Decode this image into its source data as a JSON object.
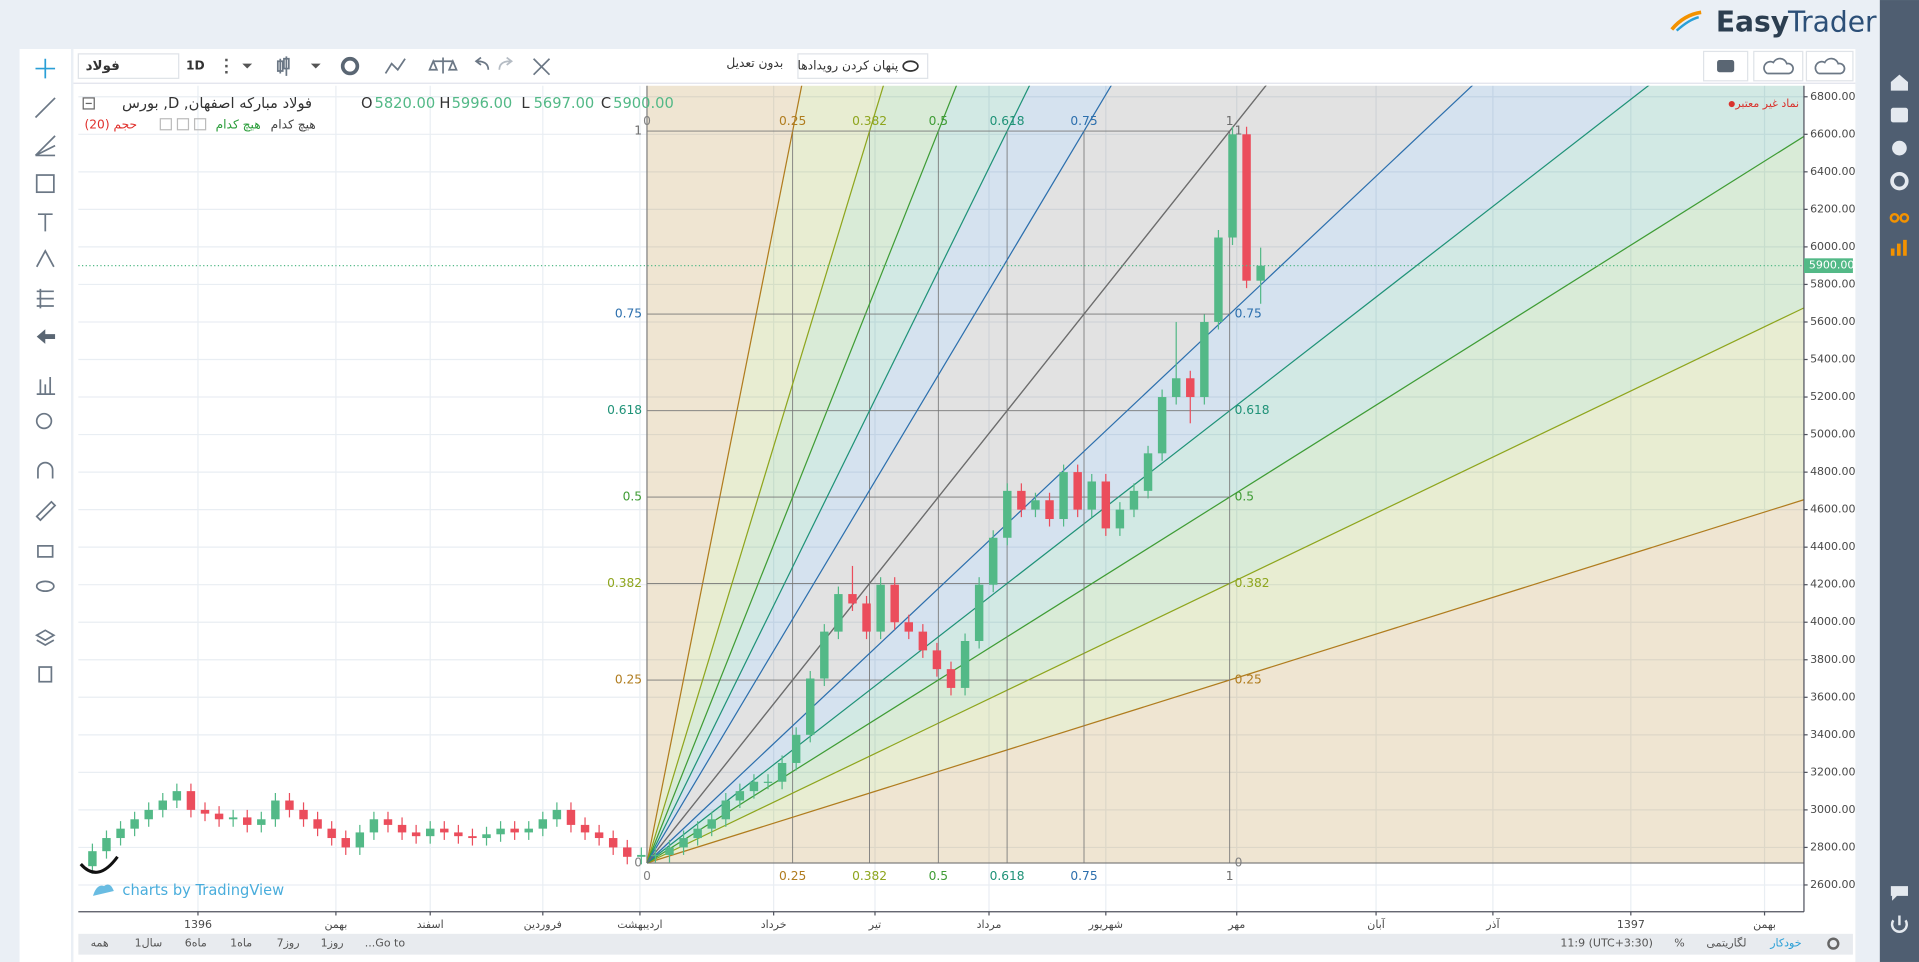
{
  "header": {
    "logo_easy": "Easy",
    "logo_trader": "Trader"
  },
  "toolbar": {
    "symbol": "فولاد",
    "interval": "1D",
    "adjustment": "بدون تعدیل",
    "hide_events": "پنهان کردن رویدادها"
  },
  "chart_data": {
    "type": "candlestick",
    "title": "فولاد مبارکه اصفهان, D, بورس",
    "ohlc": {
      "labels": [
        "O",
        "H",
        "L",
        "C"
      ],
      "values": [
        5820,
        5996,
        5697,
        5900
      ],
      "value_labels": [
        "5820.00",
        "5996.00",
        "5697.00",
        "5900.00"
      ]
    },
    "indicators": [
      "حجم (20)",
      "هیچ کدام",
      "هیچ کدام"
    ],
    "status": "نماد غیر معتبر",
    "watermark": "charts by TradingView",
    "up_color": "#53b987",
    "down_color": "#eb4d5c",
    "open": [
      2700,
      2780,
      2850,
      2900,
      2950,
      3000,
      3050,
      3100,
      3000,
      2980,
      2950,
      2960,
      2920,
      2950,
      3050,
      3000,
      2950,
      2900,
      2850,
      2800,
      2880,
      2950,
      2920,
      2880,
      2860,
      2900,
      2880,
      2860,
      2850,
      2870,
      2900,
      2880,
      2900,
      2950,
      3000,
      2920,
      2880,
      2850,
      2800,
      2750,
      2760,
      2760,
      2800,
      2850,
      2900,
      2950,
      3050,
      3100,
      3150,
      3150,
      3250,
      3400,
      3700,
      3950,
      4150,
      4100,
      3950,
      4200,
      4000,
      3950,
      3850,
      3750,
      3650,
      3900,
      4200,
      4450,
      4700,
      4600,
      4650,
      4550,
      4800,
      4600,
      4750,
      4500,
      4600,
      4700,
      4900,
      5200,
      5300,
      5200,
      5600,
      6050,
      6600,
      5820
    ],
    "high": [
      2820,
      2890,
      2940,
      2990,
      3040,
      3090,
      3140,
      3140,
      3040,
      3020,
      3000,
      3000,
      2990,
      3090,
      3090,
      3040,
      2990,
      2940,
      2890,
      2920,
      2990,
      2990,
      2960,
      2920,
      2940,
      2940,
      2920,
      2900,
      2910,
      2940,
      2940,
      2940,
      2990,
      3040,
      3040,
      2960,
      2920,
      2890,
      2840,
      2800,
      2800,
      2840,
      2890,
      2940,
      2990,
      3090,
      3140,
      3190,
      3190,
      3290,
      3440,
      3740,
      3990,
      4190,
      4300,
      4140,
      4240,
      4240,
      4040,
      3990,
      3890,
      3790,
      3940,
      4240,
      4490,
      4740,
      4740,
      4690,
      4690,
      4840,
      4840,
      4790,
      4790,
      4640,
      4740,
      4940,
      5240,
      5600,
      5340,
      5640,
      6090,
      6640,
      6640,
      5996
    ],
    "low": [
      2660,
      2740,
      2810,
      2860,
      2910,
      2960,
      3010,
      2960,
      2940,
      2910,
      2910,
      2880,
      2880,
      2910,
      2960,
      2910,
      2860,
      2810,
      2760,
      2760,
      2840,
      2880,
      2840,
      2820,
      2820,
      2840,
      2820,
      2810,
      2810,
      2830,
      2840,
      2840,
      2860,
      2910,
      2880,
      2840,
      2810,
      2760,
      2710,
      2710,
      2720,
      2720,
      2760,
      2810,
      2860,
      2910,
      3010,
      3060,
      3110,
      3110,
      3210,
      3360,
      3660,
      3910,
      4060,
      3910,
      3910,
      3960,
      3910,
      3810,
      3710,
      3610,
      3610,
      3860,
      4160,
      4410,
      4560,
      4560,
      4510,
      4510,
      4560,
      4560,
      4460,
      4460,
      4560,
      4660,
      4860,
      5160,
      5060,
      5160,
      5560,
      6010,
      5780,
      5697
    ],
    "close": [
      2780,
      2850,
      2900,
      2950,
      3000,
      3050,
      3100,
      3000,
      2980,
      2950,
      2960,
      2920,
      2950,
      3050,
      3000,
      2950,
      2900,
      2850,
      2800,
      2880,
      2950,
      2920,
      2880,
      2860,
      2900,
      2880,
      2860,
      2850,
      2870,
      2900,
      2880,
      2900,
      2950,
      3000,
      2920,
      2880,
      2850,
      2800,
      2750,
      2760,
      2760,
      2800,
      2850,
      2900,
      2950,
      3050,
      3100,
      3150,
      3150,
      3250,
      3400,
      3700,
      3950,
      4150,
      4100,
      3950,
      4200,
      4000,
      3950,
      3850,
      3750,
      3650,
      3900,
      4200,
      4450,
      4700,
      4600,
      4650,
      4550,
      4800,
      4600,
      4750,
      4500,
      4600,
      4700,
      4900,
      5200,
      5300,
      5200,
      5600,
      6050,
      6600,
      5820,
      5900
    ],
    "xlim": [
      -1,
      121.6
    ],
    "xticks": [
      {
        "value": 7.5,
        "label": "1396"
      },
      {
        "value": 17.3,
        "label": "بهمن"
      },
      {
        "value": 24,
        "label": "اسفند"
      },
      {
        "value": 32,
        "label": "فروردین"
      },
      {
        "value": 38.9,
        "label": "اردیبهشت"
      },
      {
        "value": 48.4,
        "label": "خرداد"
      },
      {
        "value": 55.6,
        "label": "تیر"
      },
      {
        "value": 63.7,
        "label": "مرداد"
      },
      {
        "value": 72,
        "label": "شهریور"
      },
      {
        "value": 81.3,
        "label": "مهر"
      },
      {
        "value": 91.2,
        "label": "آبان"
      },
      {
        "value": 99.5,
        "label": "آذر"
      },
      {
        "value": 109.3,
        "label": "1397"
      },
      {
        "value": 118.8,
        "label": "بهمن"
      }
    ],
    "ylim": [
      2457,
      6859
    ],
    "yticks": [
      {
        "value": 2600,
        "label": "2600.00"
      },
      {
        "value": 2800,
        "label": "2800.00"
      },
      {
        "value": 3000,
        "label": "3000.00"
      },
      {
        "value": 3200,
        "label": "3200.00"
      },
      {
        "value": 3400,
        "label": "3400.00"
      },
      {
        "value": 3600,
        "label": "3600.00"
      },
      {
        "value": 3800,
        "label": "3800.00"
      },
      {
        "value": 4000,
        "label": "4000.00"
      },
      {
        "value": 4200,
        "label": "4200.00"
      },
      {
        "value": 4400,
        "label": "4400.00"
      },
      {
        "value": 4600,
        "label": "4600.00"
      },
      {
        "value": 4800,
        "label": "4800.00"
      },
      {
        "value": 5000,
        "label": "5000.00"
      },
      {
        "value": 5200,
        "label": "5200.00"
      },
      {
        "value": 5400,
        "label": "5400.00"
      },
      {
        "value": 5600,
        "label": "5600.00"
      },
      {
        "value": 5800,
        "label": "5800.00"
      },
      {
        "value": 6000,
        "label": "6000.00"
      },
      {
        "value": 6200,
        "label": "6200.00"
      },
      {
        "value": 6400,
        "label": "6400.00"
      },
      {
        "value": 6600,
        "label": "6600.00"
      },
      {
        "value": 6800,
        "label": "6800.00"
      }
    ],
    "grid": true,
    "last_price": 5900,
    "last_price_label": "5900.00",
    "fib_fan": {
      "levels": [
        0,
        0.25,
        0.382,
        0.5,
        0.618,
        0.75,
        1
      ],
      "colors": [
        "#808080",
        "#b07c1e",
        "#8ea51d",
        "#3f9c35",
        "#1f9277",
        "#2c6fad",
        "#6d6d6d"
      ],
      "start": [
        39.4,
        2717
      ],
      "end": [
        80.8,
        6617
      ]
    }
  },
  "bottom_bar": {
    "ranges": [
      "Go to...",
      "1روز",
      "7روز",
      "1ماه",
      "6ماه",
      "1سال",
      "همه"
    ],
    "time": "11:9 (UTC+3:30)",
    "percent": "%",
    "log": "لگاریتمی",
    "auto": "خودکار"
  }
}
